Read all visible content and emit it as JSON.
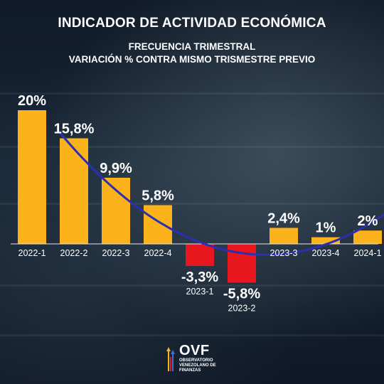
{
  "header": {
    "title": "INDICADOR DE ACTIVIDAD ECONÓMICA",
    "subtitle_line1": "FRECUENCIA TRIMESTRAL",
    "subtitle_line2": "VARIACIÓN % CONTRA MISMO TRISMESTRE PREVIO"
  },
  "chart_data": {
    "type": "bar",
    "categories": [
      "2022-1",
      "2022-2",
      "2022-3",
      "2022-4",
      "2023-1",
      "2023-2",
      "2023-3",
      "2023-4",
      "2024-1"
    ],
    "values": [
      20,
      15.8,
      9.9,
      5.8,
      -3.3,
      -5.8,
      2.4,
      1,
      2
    ],
    "value_labels": [
      "20%",
      "15,8%",
      "9,9%",
      "5,8%",
      "-3,3%",
      "-5,8%",
      "2,4%",
      "1%",
      "2%"
    ],
    "title": "INDICADOR DE ACTIVIDAD ECONÓMICA",
    "subtitle": "FRECUENCIA TRIMESTRAL / VARIACIÓN % CONTRA MISMO TRISMESTRE PREVIO",
    "xlabel": "",
    "ylabel": "",
    "ylim": [
      -6.5,
      21
    ],
    "grid": false,
    "legend": "none",
    "trendline": "polynomial",
    "colors": {
      "positive": "#fbb21b",
      "negative": "#e8171e",
      "trend": "#2b2fb3",
      "text": "#ffffff"
    }
  },
  "logo": {
    "name": "OVF",
    "tagline_line1": "OBSERVATORIO",
    "tagline_line2": "VENEZOLANO DE",
    "tagline_line3": "FINANZAS"
  }
}
